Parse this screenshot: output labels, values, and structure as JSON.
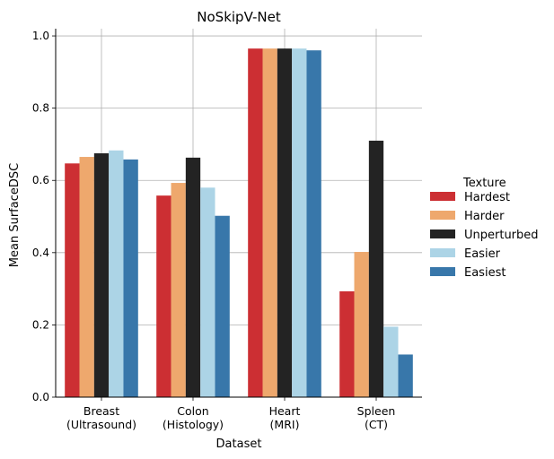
{
  "chart_data": {
    "type": "bar",
    "title": "NoSkipV-Net",
    "xlabel": "Dataset",
    "ylabel": "Mean SurfaceDSC",
    "categories": [
      [
        "Breast",
        "(Ultrasound)"
      ],
      [
        "Colon",
        "(Histology)"
      ],
      [
        "Heart",
        "(MRI)"
      ],
      [
        "Spleen",
        "(CT)"
      ]
    ],
    "ylim": [
      0,
      1.02
    ],
    "yticks": [
      "0.0",
      "0.2",
      "0.4",
      "0.6",
      "0.8",
      "1.0"
    ],
    "grid": true,
    "legend": {
      "title": "Texture",
      "placement": "right"
    },
    "series": [
      {
        "name": "Hardest",
        "color": "#cc2f33",
        "values": [
          0.647,
          0.558,
          0.965,
          0.293
        ]
      },
      {
        "name": "Harder",
        "color": "#eea86d",
        "values": [
          0.665,
          0.593,
          0.965,
          0.402
        ]
      },
      {
        "name": "Unperturbed",
        "color": "#232323",
        "values": [
          0.675,
          0.663,
          0.965,
          0.71
        ]
      },
      {
        "name": "Easier",
        "color": "#acd4e6",
        "values": [
          0.683,
          0.58,
          0.965,
          0.195
        ]
      },
      {
        "name": "Easiest",
        "color": "#3877aa",
        "values": [
          0.658,
          0.502,
          0.96,
          0.118
        ]
      }
    ]
  }
}
